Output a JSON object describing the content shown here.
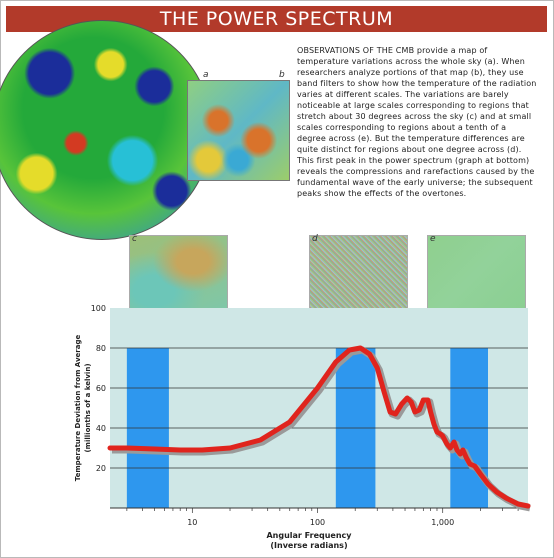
{
  "title": "THE POWER SPECTRUM",
  "description": "OBSERVATIONS OF THE CMB provide a map of temperature variations across the whole sky (a). When researchers analyze portions of that map (b), they use band filters to show how the temperature of the radiation varies at different scales. The variations are barely noticeable at large scales corresponding to regions that stretch about 30 degrees across the sky (c) and at small scales corresponding to regions about a tenth of a degree across (e). But the temperature differences are quite distinct for regions about one degree across (d). This first peak in the power spectrum (graph at bottom) reveals the compressions and rarefactions caused by the fundamental wave of the early universe; the subsequent peaks show the effects of the overtones.",
  "panel_labels": {
    "a": "a",
    "b": "b",
    "c": "c",
    "d": "d",
    "e": "e"
  },
  "colors": {
    "title_bg": "#b23a2a",
    "plot_bg": "#cfe7e6",
    "band": "#2e97ee",
    "curve": "#e0241d",
    "curve_shadow": "#9a9a9a"
  },
  "chart_data": {
    "type": "line",
    "title": "",
    "xlabel": "Angular Frequency (Inverse radians)",
    "ylabel": "Temperature Deviation from Average (millionths of a kelvin)",
    "x_scale": "log",
    "xlim": [
      2.2,
      4800
    ],
    "ylim": [
      0,
      100
    ],
    "x_ticks": [
      10,
      100,
      1000
    ],
    "x_tick_labels": [
      "10",
      "100",
      "1,000"
    ],
    "y_ticks": [
      20,
      40,
      60,
      80,
      100
    ],
    "y_tick_labels": [
      "20",
      "40",
      "60",
      "80",
      "100"
    ],
    "gridlines_y": [
      20,
      40,
      60,
      80
    ],
    "bands": [
      [
        3,
        6.5
      ],
      [
        140,
        290
      ],
      [
        1150,
        2300
      ]
    ],
    "series": [
      {
        "x": [
          2.2,
          3,
          5,
          8,
          12,
          20,
          35,
          60,
          100,
          140,
          180,
          220,
          260,
          300,
          340,
          380,
          420,
          470,
          520,
          560,
          600,
          650,
          700,
          760,
          800,
          850,
          900,
          960,
          1000,
          1080,
          1150,
          1230,
          1300,
          1380,
          1450,
          1550,
          1650,
          1800,
          2000,
          2300,
          2700,
          3200,
          4000,
          4800
        ],
        "y": [
          30,
          30,
          29.5,
          29,
          29,
          30,
          34,
          43,
          60,
          73,
          79,
          80,
          77,
          70,
          58,
          48,
          47,
          52,
          55,
          53,
          48,
          49,
          54,
          54,
          48,
          42,
          38,
          37,
          36,
          32,
          30,
          33,
          29,
          27,
          29,
          25,
          22,
          21,
          17,
          12,
          8,
          5,
          2,
          1
        ]
      }
    ]
  }
}
